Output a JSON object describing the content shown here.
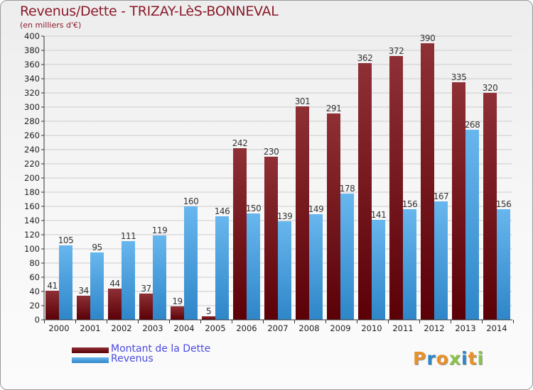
{
  "title": "Revenus/Dette - TRIZAY-LèS-BONNEVAL",
  "subtitle": "(en milliers d'€)",
  "logo_text": "Proxiti",
  "colors": {
    "dette_top": "#8e3036",
    "dette_bottom": "#5a0006",
    "revenus_top": "#68b6ee",
    "revenus_bottom": "#2e86c8",
    "axis": "#333333",
    "grid": "#cccccc",
    "title": "#8b1a2a",
    "legend_text": "#4a4ae0"
  },
  "chart_data": {
    "type": "bar",
    "categories": [
      "2000",
      "2001",
      "2002",
      "2003",
      "2004",
      "2005",
      "2006",
      "2007",
      "2008",
      "2009",
      "2010",
      "2011",
      "2012",
      "2013",
      "2014"
    ],
    "series": [
      {
        "name": "Montant de la Dette",
        "values": [
          41,
          34,
          44,
          37,
          19,
          5,
          242,
          230,
          301,
          291,
          362,
          372,
          390,
          335,
          320
        ]
      },
      {
        "name": "Revenus",
        "values": [
          105,
          95,
          111,
          119,
          160,
          146,
          150,
          139,
          149,
          178,
          141,
          156,
          167,
          268,
          156
        ]
      }
    ],
    "title": "Revenus/Dette - TRIZAY-LèS-BONNEVAL",
    "ylabel": "(en milliers d'€)",
    "ylim": [
      0,
      400
    ],
    "ytick_step": 20,
    "grid": true,
    "legend": "bottom-left"
  }
}
